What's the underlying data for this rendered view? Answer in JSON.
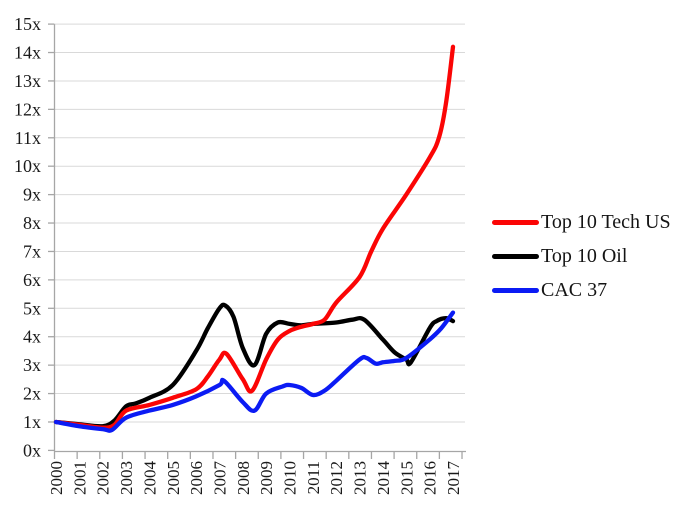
{
  "chart_data": {
    "type": "line",
    "title": "",
    "xlabel": "",
    "ylabel": "",
    "xlim": [
      2000,
      2017
    ],
    "ylim": [
      0,
      15
    ],
    "grid": true,
    "legend_position": "right",
    "x_tick_labels": [
      "2000",
      "2001",
      "2002",
      "2003",
      "2004",
      "2005",
      "2006",
      "2007",
      "2008",
      "2009",
      "2010",
      "2011",
      "2012",
      "2013",
      "2014",
      "2015",
      "2016",
      "2017"
    ],
    "y_tick_labels": [
      "0x",
      "1x",
      "2x",
      "3x",
      "4x",
      "5x",
      "6x",
      "7x",
      "8x",
      "9x",
      "10x",
      "11x",
      "12x",
      "13x",
      "14x",
      "15x"
    ],
    "series": [
      {
        "name": "Top 10 Oil",
        "color": "#000000",
        "points": [
          [
            2000,
            1.0
          ],
          [
            2001,
            0.92
          ],
          [
            2002,
            0.85
          ],
          [
            2002.5,
            1.05
          ],
          [
            2003,
            1.55
          ],
          [
            2003.4,
            1.65
          ],
          [
            2004,
            1.85
          ],
          [
            2005,
            2.3
          ],
          [
            2006,
            3.5
          ],
          [
            2006.5,
            4.3
          ],
          [
            2007,
            5.0
          ],
          [
            2007.25,
            5.1
          ],
          [
            2007.6,
            4.7
          ],
          [
            2008,
            3.6
          ],
          [
            2008.5,
            3.0
          ],
          [
            2009,
            4.1
          ],
          [
            2009.5,
            4.5
          ],
          [
            2010,
            4.45
          ],
          [
            2010.5,
            4.4
          ],
          [
            2011,
            4.45
          ],
          [
            2012,
            4.5
          ],
          [
            2012.7,
            4.6
          ],
          [
            2013.2,
            4.6
          ],
          [
            2014,
            3.9
          ],
          [
            2014.5,
            3.45
          ],
          [
            2015,
            3.2
          ],
          [
            2015.2,
            3.1
          ],
          [
            2016,
            4.3
          ],
          [
            2016.3,
            4.55
          ],
          [
            2016.7,
            4.65
          ],
          [
            2017,
            4.55
          ]
        ]
      },
      {
        "name": "Top 10 Tech US",
        "color": "#fb0505",
        "points": [
          [
            2000,
            1.0
          ],
          [
            2001,
            0.9
          ],
          [
            2002,
            0.8
          ],
          [
            2002.5,
            0.9
          ],
          [
            2003,
            1.4
          ],
          [
            2004,
            1.6
          ],
          [
            2005,
            1.85
          ],
          [
            2006,
            2.15
          ],
          [
            2006.5,
            2.6
          ],
          [
            2007,
            3.2
          ],
          [
            2007.3,
            3.4
          ],
          [
            2008,
            2.5
          ],
          [
            2008.4,
            2.1
          ],
          [
            2009,
            3.2
          ],
          [
            2009.5,
            3.9
          ],
          [
            2010,
            4.2
          ],
          [
            2010.5,
            4.35
          ],
          [
            2011,
            4.45
          ],
          [
            2011.5,
            4.6
          ],
          [
            2012,
            5.2
          ],
          [
            2013,
            6.1
          ],
          [
            2013.5,
            7.0
          ],
          [
            2014,
            7.8
          ],
          [
            2015,
            9.0
          ],
          [
            2016,
            10.3
          ],
          [
            2016.4,
            11.0
          ],
          [
            2016.7,
            12.2
          ],
          [
            2017,
            14.2
          ]
        ]
      },
      {
        "name": "CAC 37",
        "color": "#0b1bf4",
        "points": [
          [
            2000,
            1.0
          ],
          [
            2001,
            0.85
          ],
          [
            2002,
            0.75
          ],
          [
            2002.4,
            0.72
          ],
          [
            2003,
            1.15
          ],
          [
            2004,
            1.4
          ],
          [
            2005,
            1.6
          ],
          [
            2006,
            1.9
          ],
          [
            2007,
            2.3
          ],
          [
            2007.2,
            2.45
          ],
          [
            2008,
            1.7
          ],
          [
            2008.5,
            1.4
          ],
          [
            2009,
            2.0
          ],
          [
            2009.7,
            2.25
          ],
          [
            2010,
            2.3
          ],
          [
            2010.5,
            2.2
          ],
          [
            2011,
            1.95
          ],
          [
            2011.5,
            2.1
          ],
          [
            2012,
            2.45
          ],
          [
            2013,
            3.2
          ],
          [
            2013.3,
            3.25
          ],
          [
            2013.7,
            3.05
          ],
          [
            2014,
            3.1
          ],
          [
            2014.5,
            3.15
          ],
          [
            2015,
            3.25
          ],
          [
            2016,
            3.9
          ],
          [
            2016.5,
            4.3
          ],
          [
            2017,
            4.85
          ]
        ]
      }
    ]
  },
  "legend": {
    "draw_order_note": "legend lists red, black, blue top to bottom"
  },
  "colors": {
    "background": "#ffffff",
    "axis": "#a6a6a6",
    "grid": "#d9d9d9",
    "text": "#1a1a1a",
    "red_series": "#fb0505",
    "black_series": "#000000",
    "blue_series": "#0b1bf4"
  }
}
